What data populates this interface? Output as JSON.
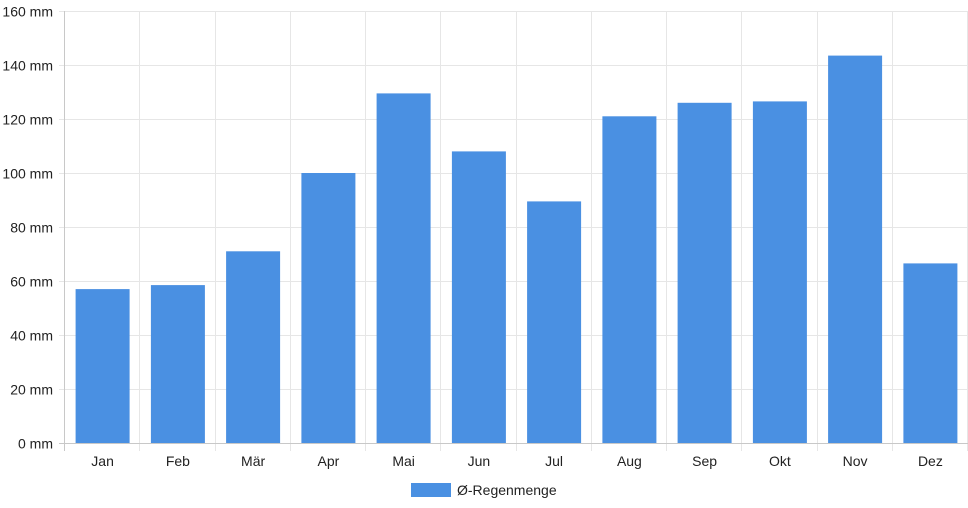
{
  "chart_data": {
    "type": "bar",
    "categories": [
      "Jan",
      "Feb",
      "Mär",
      "Apr",
      "Mai",
      "Jun",
      "Jul",
      "Aug",
      "Sep",
      "Okt",
      "Nov",
      "Dez"
    ],
    "series": [
      {
        "name": "Ø-Regenmenge",
        "values": [
          57,
          58.5,
          71,
          100,
          129.5,
          108,
          89.5,
          121,
          126,
          126.5,
          143.5,
          66.5
        ]
      }
    ],
    "ylim": [
      0,
      160
    ],
    "yticks": [
      0,
      20,
      40,
      60,
      80,
      100,
      120,
      140,
      160
    ],
    "ytick_labels": [
      "0 mm",
      "20 mm",
      "40 mm",
      "60 mm",
      "80 mm",
      "100 mm",
      "120 mm",
      "140 mm",
      "160 mm"
    ],
    "grid": true,
    "legend_position": "bottom-center",
    "colors": {
      "bar": "#4a90e2",
      "grid": "#e6e6e6",
      "axis": "#c8c8c8"
    }
  }
}
